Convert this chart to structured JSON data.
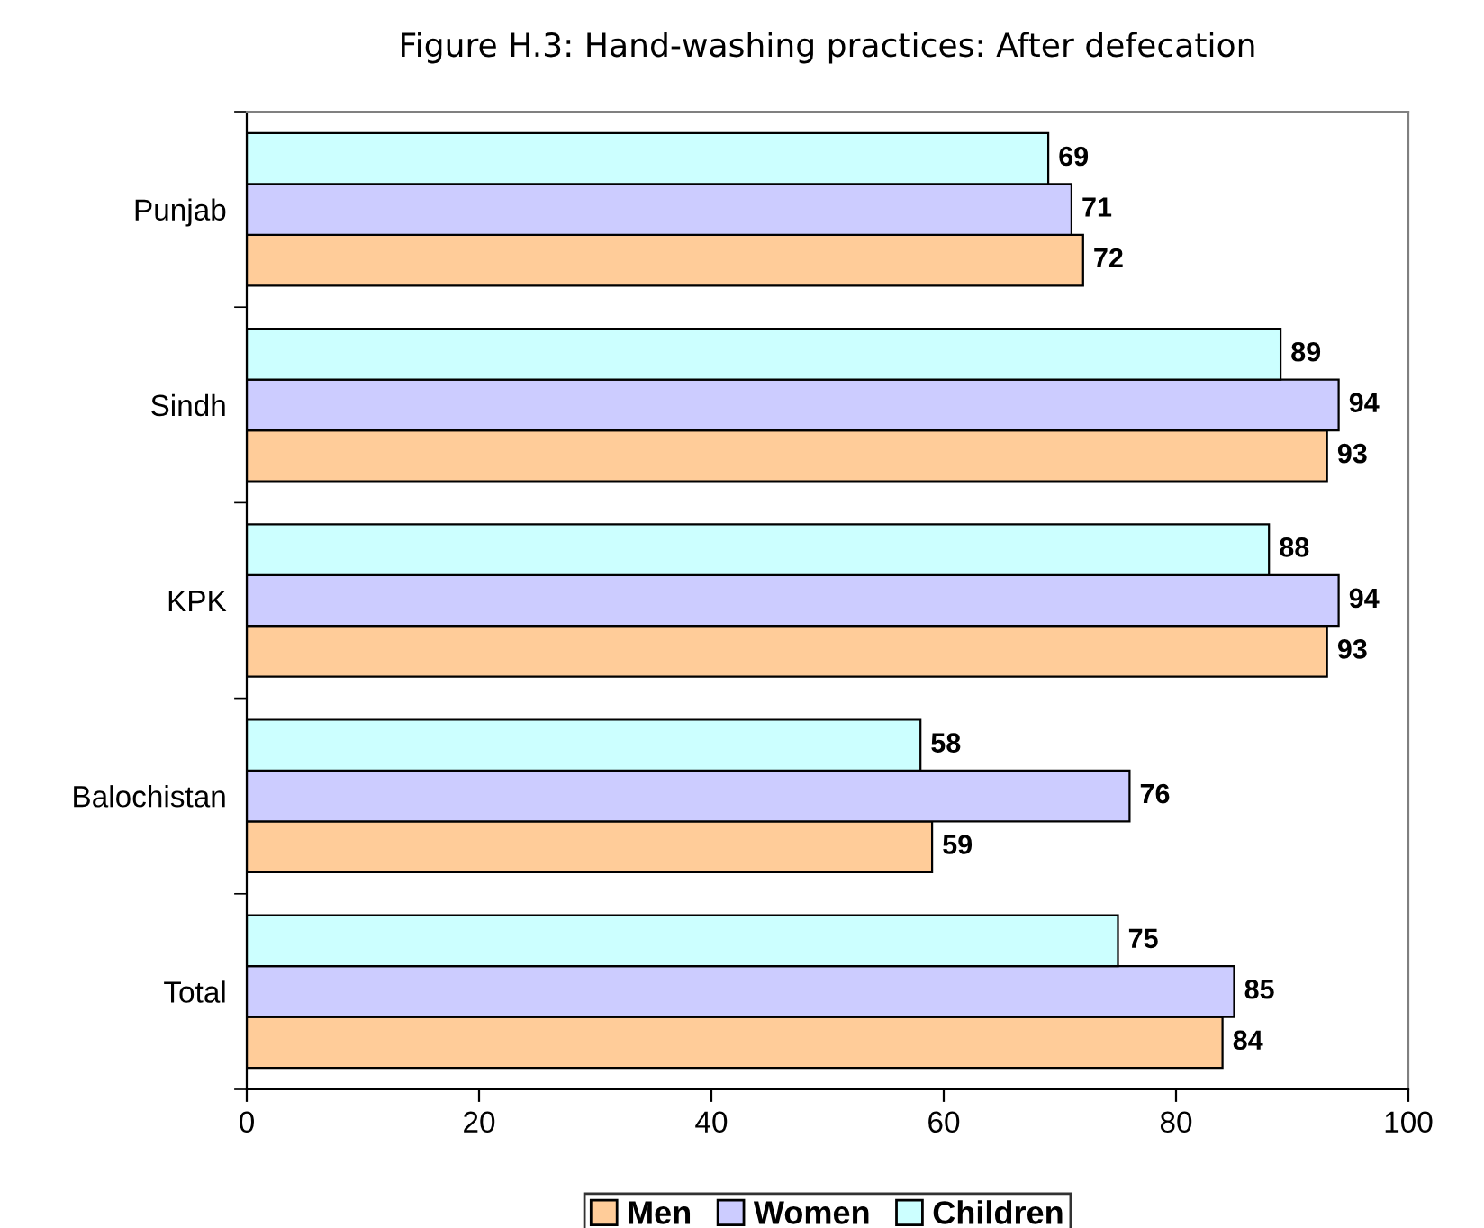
{
  "chart_data": {
    "type": "bar",
    "orientation": "horizontal",
    "title": "Figure H.3: Hand-washing practices: After defecation",
    "categories": [
      "Punjab",
      "Sindh",
      "KPK",
      "Balochistan",
      "Total"
    ],
    "series": [
      {
        "name": "Men",
        "color": "#ffcc99",
        "values": [
          72,
          93,
          93,
          59,
          84
        ]
      },
      {
        "name": "Women",
        "color": "#ccccff",
        "values": [
          71,
          94,
          94,
          76,
          85
        ]
      },
      {
        "name": "Children",
        "color": "#ccffff",
        "values": [
          69,
          89,
          88,
          58,
          75
        ]
      }
    ],
    "xlim": [
      0,
      100
    ],
    "xticks": [
      0,
      20,
      40,
      60,
      80,
      100
    ],
    "data_labels": true,
    "grid": false,
    "legend": "bottom"
  }
}
